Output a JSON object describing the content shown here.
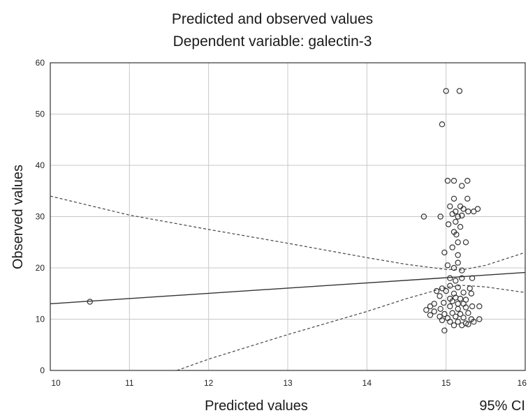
{
  "chart_data": {
    "type": "scatter",
    "title": [
      "Predicted and observed values",
      "Dependent  variable: galectin-3"
    ],
    "xlabel": "Predicted values",
    "ylabel": "Observed values",
    "legend_note": "95% CI",
    "xlim": [
      10,
      16
    ],
    "ylim": [
      0,
      60
    ],
    "xticks": [
      "10",
      "11",
      "12",
      "13",
      "14",
      "15",
      "16"
    ],
    "yticks": [
      "0",
      "10",
      "20",
      "30",
      "40",
      "50",
      "60"
    ],
    "grid": true,
    "fit_line": {
      "x": [
        10,
        16
      ],
      "y": [
        13.0,
        19.1
      ]
    },
    "ci_upper": {
      "x": [
        10,
        11,
        12,
        13,
        14,
        14.5,
        15,
        15.2,
        15.5,
        16
      ],
      "y": [
        34.0,
        30.3,
        27.5,
        24.8,
        22.0,
        20.7,
        19.7,
        19.6,
        20.5,
        23.0
      ]
    },
    "ci_lower": {
      "x": [
        11.6,
        12,
        13,
        14,
        14.5,
        15,
        15.2,
        15.5,
        16
      ],
      "y": [
        0.0,
        2.2,
        7.0,
        11.5,
        14.0,
        16.2,
        16.6,
        16.3,
        15.2
      ]
    },
    "points": [
      [
        10.5,
        13.4
      ],
      [
        15.0,
        54.5
      ],
      [
        15.17,
        54.5
      ],
      [
        14.95,
        48.0
      ],
      [
        15.02,
        37.0
      ],
      [
        15.1,
        37.0
      ],
      [
        15.27,
        37.0
      ],
      [
        15.2,
        36.0
      ],
      [
        15.1,
        33.5
      ],
      [
        15.27,
        33.5
      ],
      [
        14.72,
        30.0
      ],
      [
        14.93,
        30.0
      ],
      [
        15.05,
        32.0
      ],
      [
        15.12,
        31.0
      ],
      [
        15.18,
        32.0
      ],
      [
        15.22,
        31.5
      ],
      [
        15.28,
        31.0
      ],
      [
        15.35,
        31.0
      ],
      [
        15.4,
        31.5
      ],
      [
        15.08,
        30.5
      ],
      [
        15.15,
        30.0
      ],
      [
        15.2,
        30.2
      ],
      [
        15.12,
        29.0
      ],
      [
        15.03,
        28.5
      ],
      [
        15.18,
        28.0
      ],
      [
        15.1,
        27.0
      ],
      [
        15.13,
        26.5
      ],
      [
        15.15,
        25.0
      ],
      [
        15.25,
        25.0
      ],
      [
        15.08,
        24.0
      ],
      [
        14.98,
        23.0
      ],
      [
        15.15,
        22.5
      ],
      [
        15.15,
        21.0
      ],
      [
        15.02,
        20.5
      ],
      [
        15.1,
        20.0
      ],
      [
        15.2,
        19.5
      ],
      [
        15.05,
        18.0
      ],
      [
        15.2,
        18.0
      ],
      [
        15.33,
        18.0
      ],
      [
        15.12,
        17.5
      ],
      [
        14.95,
        16.0
      ],
      [
        15.05,
        16.5
      ],
      [
        15.15,
        16.2
      ],
      [
        15.3,
        16.0
      ],
      [
        14.88,
        15.5
      ],
      [
        15.0,
        15.5
      ],
      [
        15.1,
        15.0
      ],
      [
        15.22,
        15.2
      ],
      [
        15.32,
        15.0
      ],
      [
        14.92,
        14.5
      ],
      [
        15.05,
        14.0
      ],
      [
        15.12,
        14.2
      ],
      [
        15.18,
        14.0
      ],
      [
        15.25,
        13.8
      ],
      [
        14.85,
        13.0
      ],
      [
        14.97,
        13.2
      ],
      [
        15.08,
        13.5
      ],
      [
        15.15,
        13.0
      ],
      [
        15.22,
        13.0
      ],
      [
        14.8,
        12.5
      ],
      [
        14.93,
        12.0
      ],
      [
        15.05,
        12.5
      ],
      [
        15.15,
        12.0
      ],
      [
        15.25,
        12.3
      ],
      [
        15.33,
        12.5
      ],
      [
        15.42,
        12.5
      ],
      [
        14.75,
        11.8
      ],
      [
        14.85,
        11.5
      ],
      [
        14.98,
        11.0
      ],
      [
        15.08,
        11.2
      ],
      [
        15.18,
        11.0
      ],
      [
        15.28,
        11.2
      ],
      [
        14.8,
        10.8
      ],
      [
        14.92,
        10.5
      ],
      [
        15.02,
        10.2
      ],
      [
        15.12,
        10.5
      ],
      [
        15.22,
        10.3
      ],
      [
        15.32,
        10.0
      ],
      [
        15.42,
        10.0
      ],
      [
        14.95,
        9.8
      ],
      [
        15.05,
        9.5
      ],
      [
        15.15,
        9.5
      ],
      [
        15.25,
        9.2
      ],
      [
        15.35,
        9.5
      ],
      [
        15.1,
        8.8
      ],
      [
        15.2,
        8.8
      ],
      [
        15.28,
        9.0
      ],
      [
        14.98,
        7.8
      ]
    ]
  }
}
